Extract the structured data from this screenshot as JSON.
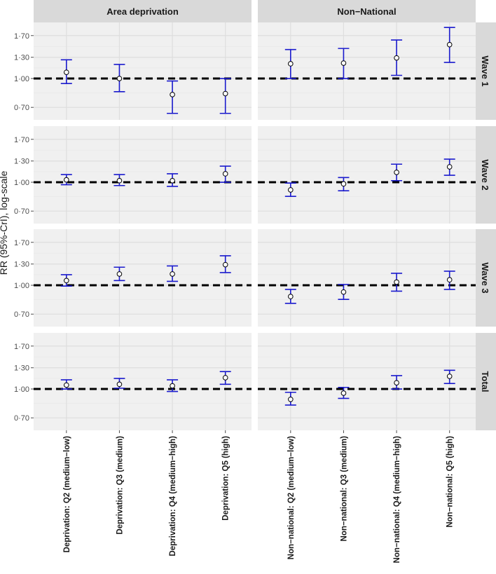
{
  "chart_data": {
    "type": "errorbar",
    "ylabel": "RR (95%-CrI), log-scale",
    "y_scale": "log",
    "ylim": [
      0.6,
      2.0
    ],
    "y_ticks": [
      0.7,
      1.0,
      1.3,
      1.7
    ],
    "y_tick_labels": [
      "0·70",
      "1·00",
      "1·30",
      "1·70"
    ],
    "reference_line": 1.0,
    "colors": {
      "errorbar": "#1a1acd",
      "reference": "#000000",
      "panel_bg": "#f0f0f0",
      "strip_bg": "#d9d9d9",
      "grid": "#dedede",
      "point_fill": "#ffffff"
    },
    "column_facets": [
      "Area deprivation",
      "Non−National"
    ],
    "row_facets": [
      "Wave 1",
      "Wave 2",
      "Wave 3",
      "Total"
    ],
    "categories": [
      [
        "Deprivation: Q2 (medium−low)",
        "Deprivation: Q3 (medium)",
        "Deprivation: Q4 (medium−high)",
        "Deprivation: Q5 (high)"
      ],
      [
        "Non−national:  Q2 (medium−low)",
        "Non−national:  Q3 (medium)",
        "Non−national:  Q4 (medium−high)",
        "Non−national:  Q5 (high)"
      ]
    ],
    "panels": [
      [
        {
          "est": [
            1.08,
            1.0,
            0.82,
            0.83
          ],
          "lower": [
            0.94,
            0.85,
            0.65,
            0.65
          ],
          "upper": [
            1.26,
            1.19,
            0.97,
            1.0
          ]
        },
        {
          "est": [
            1.2,
            1.21,
            1.29,
            1.52
          ],
          "lower": [
            1.0,
            1.0,
            1.04,
            1.22
          ],
          "upper": [
            1.43,
            1.45,
            1.61,
            1.88
          ]
        }
      ],
      [
        {
          "est": [
            1.03,
            1.02,
            1.02,
            1.11
          ],
          "lower": [
            0.97,
            0.96,
            0.95,
            1.0
          ],
          "upper": [
            1.1,
            1.1,
            1.11,
            1.22
          ]
        },
        {
          "est": [
            0.91,
            0.98,
            1.13,
            1.21
          ],
          "lower": [
            0.84,
            0.9,
            1.02,
            1.09
          ],
          "upper": [
            0.99,
            1.06,
            1.25,
            1.33
          ]
        }
      ],
      [
        {
          "est": [
            1.06,
            1.15,
            1.15,
            1.29
          ],
          "lower": [
            0.99,
            1.06,
            1.05,
            1.17
          ],
          "upper": [
            1.14,
            1.25,
            1.27,
            1.44
          ]
        },
        {
          "est": [
            0.87,
            0.92,
            1.04,
            1.07
          ],
          "lower": [
            0.8,
            0.84,
            0.93,
            0.95
          ],
          "upper": [
            0.95,
            1.01,
            1.16,
            1.19
          ]
        }
      ],
      [
        {
          "est": [
            1.05,
            1.06,
            1.04,
            1.15
          ],
          "lower": [
            1.0,
            1.01,
            0.97,
            1.06
          ],
          "upper": [
            1.12,
            1.14,
            1.12,
            1.24
          ]
        },
        {
          "est": [
            0.88,
            0.95,
            1.08,
            1.17
          ],
          "lower": [
            0.82,
            0.89,
            1.0,
            1.07
          ],
          "upper": [
            0.96,
            1.02,
            1.18,
            1.26
          ]
        }
      ]
    ]
  }
}
